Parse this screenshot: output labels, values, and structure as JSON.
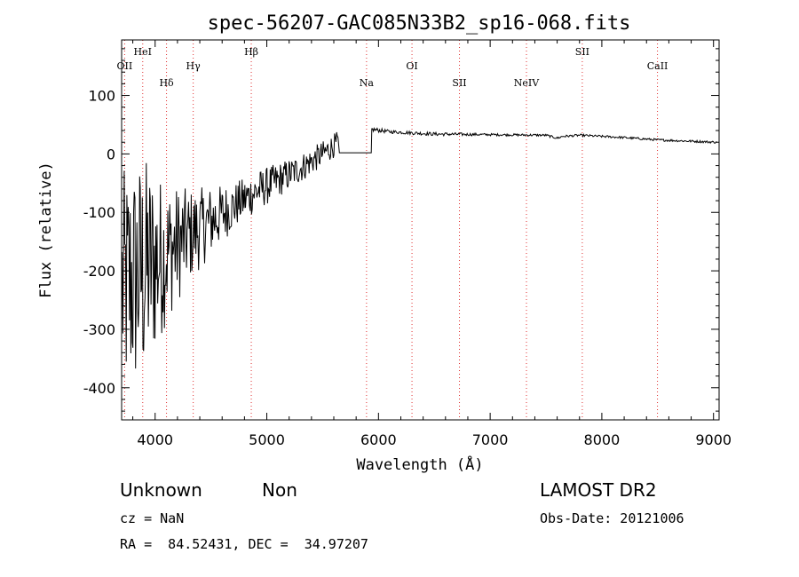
{
  "chart_data": {
    "type": "line",
    "title": "spec-56207-GAC085N33B2_sp16-068.fits",
    "xlabel": "Wavelength (Å)",
    "ylabel": "Flux (relative)",
    "xlim": [
      3700,
      9050
    ],
    "ylim": [
      -455,
      195
    ],
    "xticks": [
      4000,
      5000,
      6000,
      7000,
      8000,
      9000
    ],
    "yticks": [
      -400,
      -300,
      -200,
      -100,
      0,
      100
    ],
    "grid": false,
    "series": [
      {
        "color": "#000000",
        "segments": [
          {
            "x": [
              3705,
              3900,
              4100,
              4300,
              4500,
              4700,
              4900,
              5100,
              5300,
              5500,
              5640
            ],
            "y": [
              -230,
              -200,
              -170,
              -140,
              -115,
              -90,
              -65,
              -45,
              -25,
              0,
              20
            ],
            "noise": [
              200,
              200,
              120,
              80,
              60,
              40,
              35,
              30,
              25,
              22,
              20
            ]
          },
          {
            "x": [
              5650,
              5935
            ],
            "y": [
              2,
              2
            ],
            "noise": [
              0,
              0
            ]
          },
          {
            "x": [
              5940,
              6100,
              6500,
              7000,
              7500,
              7600,
              7650,
              7800,
              8200,
              8500,
              9030
            ],
            "y": [
              42,
              38,
              34,
              33,
              32,
              27,
              30,
              32,
              28,
              24,
              20
            ],
            "noise": [
              4,
              3,
              3,
              2,
              2,
              2,
              2,
              2,
              2,
              2,
              2
            ]
          }
        ]
      }
    ],
    "lines": [
      {
        "label": "OII",
        "x": 3727,
        "row": 1
      },
      {
        "label": "HeI",
        "x": 3889,
        "row": 0
      },
      {
        "label": "Hδ",
        "x": 4102,
        "row": 2
      },
      {
        "label": "Hγ",
        "x": 4341,
        "row": 1
      },
      {
        "label": "Hβ",
        "x": 4861,
        "row": 0
      },
      {
        "label": "Na",
        "x": 5893,
        "row": 2
      },
      {
        "label": "OI",
        "x": 6300,
        "row": 1
      },
      {
        "label": "SII",
        "x": 6725,
        "row": 2
      },
      {
        "label": "NeIV",
        "x": 7325,
        "row": 2
      },
      {
        "label": "SII",
        "x": 7825,
        "row": 0
      },
      {
        "label": "CaII",
        "x": 8498,
        "row": 1
      }
    ],
    "line_color": "#e03030"
  },
  "info": {
    "class": "Unknown",
    "subclass": "Non",
    "survey": "LAMOST DR2",
    "cz": "cz = NaN",
    "obs_date": "Obs-Date: 20121006",
    "coords": "RA =  84.52431, DEC =  34.97207"
  }
}
